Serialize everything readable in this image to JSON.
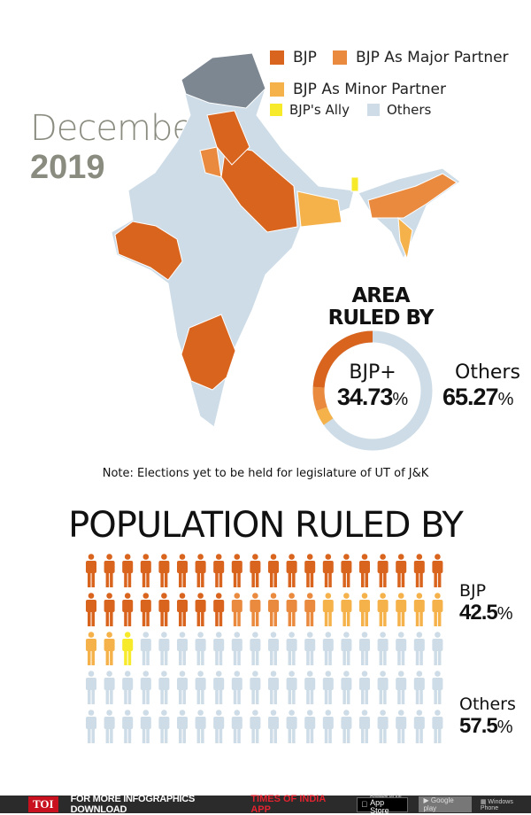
{
  "header": {
    "month": "December",
    "year": "2019"
  },
  "legend": [
    {
      "label": "BJP",
      "color": "#d9641e"
    },
    {
      "label": "BJP As Major Partner",
      "color": "#ea8a3e"
    },
    {
      "label": "BJP As Minor Partner",
      "color": "#f6b24a"
    },
    {
      "label": "BJP's Ally",
      "color": "#f7ea2a"
    },
    {
      "label": "Others",
      "color": "#cddce7"
    }
  ],
  "map": {
    "jk_color": "#7d8792"
  },
  "note": "Note: Elections yet to be held for legislature of UT of J&K",
  "chart_data": [
    {
      "type": "pie",
      "title": "AREA RULED BY",
      "donut": true,
      "series": [
        {
          "name": "BJP+",
          "value": 34.73
        },
        {
          "name": "Others",
          "value": 65.27
        }
      ],
      "labels": {
        "bjp": "BJP+",
        "bjp_value": "34.73",
        "others": "Others",
        "others_value": "65.27",
        "unit": "%"
      }
    },
    {
      "type": "bar",
      "title": "POPULATION RULED BY",
      "pictograph": true,
      "icons_total": 100,
      "icon_counts": {
        "BJP": 28,
        "BJP As Major Partner": 5,
        "BJP As Minor Partner": 9,
        "BJP's Ally": 1,
        "Others": 57
      },
      "labels": {
        "bjp": "BJP",
        "bjp_value": "42.5",
        "others": "Others",
        "others_value": "57.5",
        "unit": "%"
      }
    }
  ],
  "footer": {
    "logo": "TOI",
    "text": "FOR MORE  INFOGRAPHICS DOWNLOAD",
    "highlight": "TIMES OF INDIA  APP",
    "appstore_small": "Available on the",
    "appstore": "App Store",
    "googleplay": "Google play",
    "windows": "Windows Phone"
  }
}
